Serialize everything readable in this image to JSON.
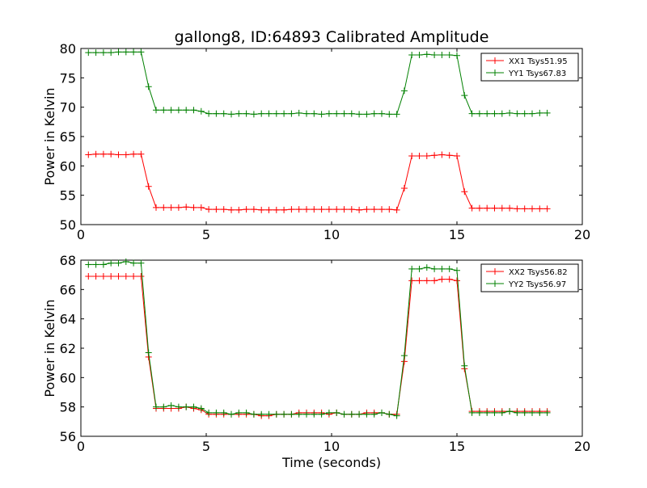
{
  "figure": {
    "title": "gallong8, ID:64893 Calibrated Amplitude",
    "xlabel": "Time (seconds)"
  },
  "colors": {
    "red": "#ff0000",
    "green": "#008000"
  },
  "chart_data": [
    {
      "type": "line",
      "title": "gallong8, ID:64893 Calibrated Amplitude",
      "xlabel": "",
      "ylabel": "Power in Kelvin",
      "xlim": [
        0,
        20
      ],
      "ylim": [
        50,
        80
      ],
      "xticks": [
        0,
        5,
        10,
        15,
        20
      ],
      "yticks": [
        50,
        55,
        60,
        65,
        70,
        75,
        80
      ],
      "grid": false,
      "legend": "top-right",
      "x": [
        0.3,
        0.6,
        0.9,
        1.2,
        1.5,
        1.8,
        2.1,
        2.4,
        2.7,
        3.0,
        3.3,
        3.6,
        3.9,
        4.2,
        4.5,
        4.8,
        5.1,
        5.4,
        5.7,
        6.0,
        6.3,
        6.6,
        6.9,
        7.2,
        7.5,
        7.8,
        8.1,
        8.4,
        8.7,
        9.0,
        9.3,
        9.6,
        9.9,
        10.2,
        10.5,
        10.8,
        11.1,
        11.4,
        11.7,
        12.0,
        12.3,
        12.6,
        12.9,
        13.2,
        13.5,
        13.8,
        14.1,
        14.4,
        14.7,
        15.0,
        15.3,
        15.6,
        15.9,
        16.2,
        16.5,
        16.8,
        17.1,
        17.4,
        17.7,
        18.0,
        18.3,
        18.6
      ],
      "series": [
        {
          "name": "XX1 Tsys51.95",
          "color": "#ff0000",
          "values": [
            61.9,
            62.0,
            62.0,
            62.0,
            61.9,
            61.9,
            62.0,
            62.0,
            56.5,
            52.9,
            52.9,
            52.9,
            52.9,
            53.0,
            52.9,
            52.9,
            52.6,
            52.6,
            52.6,
            52.5,
            52.5,
            52.6,
            52.6,
            52.5,
            52.5,
            52.5,
            52.5,
            52.6,
            52.6,
            52.6,
            52.6,
            52.6,
            52.6,
            52.6,
            52.6,
            52.6,
            52.5,
            52.6,
            52.6,
            52.6,
            52.6,
            52.5,
            56.2,
            61.7,
            61.7,
            61.7,
            61.8,
            61.9,
            61.8,
            61.7,
            55.6,
            52.8,
            52.8,
            52.8,
            52.8,
            52.8,
            52.8,
            52.7,
            52.7,
            52.7,
            52.7,
            52.7
          ]
        },
        {
          "name": "YY1 Tsys67.83",
          "color": "#008000",
          "values": [
            79.3,
            79.3,
            79.3,
            79.3,
            79.4,
            79.4,
            79.4,
            79.4,
            73.5,
            69.5,
            69.5,
            69.5,
            69.5,
            69.5,
            69.5,
            69.3,
            68.9,
            68.9,
            68.9,
            68.8,
            68.9,
            68.9,
            68.8,
            68.9,
            68.9,
            68.9,
            68.9,
            68.9,
            69.0,
            68.9,
            68.9,
            68.8,
            68.9,
            68.9,
            68.9,
            68.9,
            68.8,
            68.8,
            68.9,
            68.9,
            68.8,
            68.8,
            72.8,
            78.9,
            78.9,
            79.0,
            78.9,
            78.9,
            78.9,
            78.8,
            72.0,
            68.9,
            68.9,
            68.9,
            68.9,
            68.9,
            69.0,
            68.9,
            68.9,
            68.9,
            69.0,
            69.0
          ]
        }
      ]
    },
    {
      "type": "line",
      "title": "",
      "xlabel": "Time (seconds)",
      "ylabel": "Power in Kelvin",
      "xlim": [
        0,
        20
      ],
      "ylim": [
        56,
        68
      ],
      "xticks": [
        0,
        5,
        10,
        15,
        20
      ],
      "yticks": [
        56,
        58,
        60,
        62,
        64,
        66,
        68
      ],
      "grid": false,
      "legend": "top-right",
      "x": [
        0.3,
        0.6,
        0.9,
        1.2,
        1.5,
        1.8,
        2.1,
        2.4,
        2.7,
        3.0,
        3.3,
        3.6,
        3.9,
        4.2,
        4.5,
        4.8,
        5.1,
        5.4,
        5.7,
        6.0,
        6.3,
        6.6,
        6.9,
        7.2,
        7.5,
        7.8,
        8.1,
        8.4,
        8.7,
        9.0,
        9.3,
        9.6,
        9.9,
        10.2,
        10.5,
        10.8,
        11.1,
        11.4,
        11.7,
        12.0,
        12.3,
        12.6,
        12.9,
        13.2,
        13.5,
        13.8,
        14.1,
        14.4,
        14.7,
        15.0,
        15.3,
        15.6,
        15.9,
        16.2,
        16.5,
        16.8,
        17.1,
        17.4,
        17.7,
        18.0,
        18.3,
        18.6
      ],
      "series": [
        {
          "name": "XX2 Tsys56.82",
          "color": "#ff0000",
          "values": [
            66.9,
            66.9,
            66.9,
            66.9,
            66.9,
            66.9,
            66.9,
            66.9,
            61.4,
            57.9,
            57.9,
            57.9,
            57.9,
            58.0,
            57.9,
            57.8,
            57.5,
            57.5,
            57.5,
            57.5,
            57.5,
            57.5,
            57.5,
            57.4,
            57.4,
            57.5,
            57.5,
            57.5,
            57.6,
            57.6,
            57.6,
            57.6,
            57.5,
            57.6,
            57.5,
            57.5,
            57.5,
            57.6,
            57.6,
            57.6,
            57.5,
            57.5,
            61.1,
            66.6,
            66.6,
            66.6,
            66.6,
            66.7,
            66.7,
            66.6,
            60.6,
            57.7,
            57.7,
            57.7,
            57.7,
            57.7,
            57.7,
            57.7,
            57.7,
            57.7,
            57.7,
            57.7
          ]
        },
        {
          "name": "YY2 Tsys56.97",
          "color": "#008000",
          "values": [
            67.7,
            67.7,
            67.7,
            67.8,
            67.8,
            67.9,
            67.8,
            67.8,
            61.7,
            58.0,
            58.0,
            58.1,
            58.0,
            58.0,
            58.0,
            57.9,
            57.6,
            57.6,
            57.6,
            57.5,
            57.6,
            57.6,
            57.5,
            57.5,
            57.5,
            57.5,
            57.5,
            57.5,
            57.5,
            57.5,
            57.5,
            57.5,
            57.6,
            57.6,
            57.5,
            57.5,
            57.5,
            57.5,
            57.5,
            57.6,
            57.5,
            57.4,
            61.5,
            67.4,
            67.4,
            67.5,
            67.4,
            67.4,
            67.4,
            67.3,
            60.8,
            57.6,
            57.6,
            57.6,
            57.6,
            57.6,
            57.7,
            57.6,
            57.6,
            57.6,
            57.6,
            57.6
          ]
        }
      ]
    }
  ]
}
